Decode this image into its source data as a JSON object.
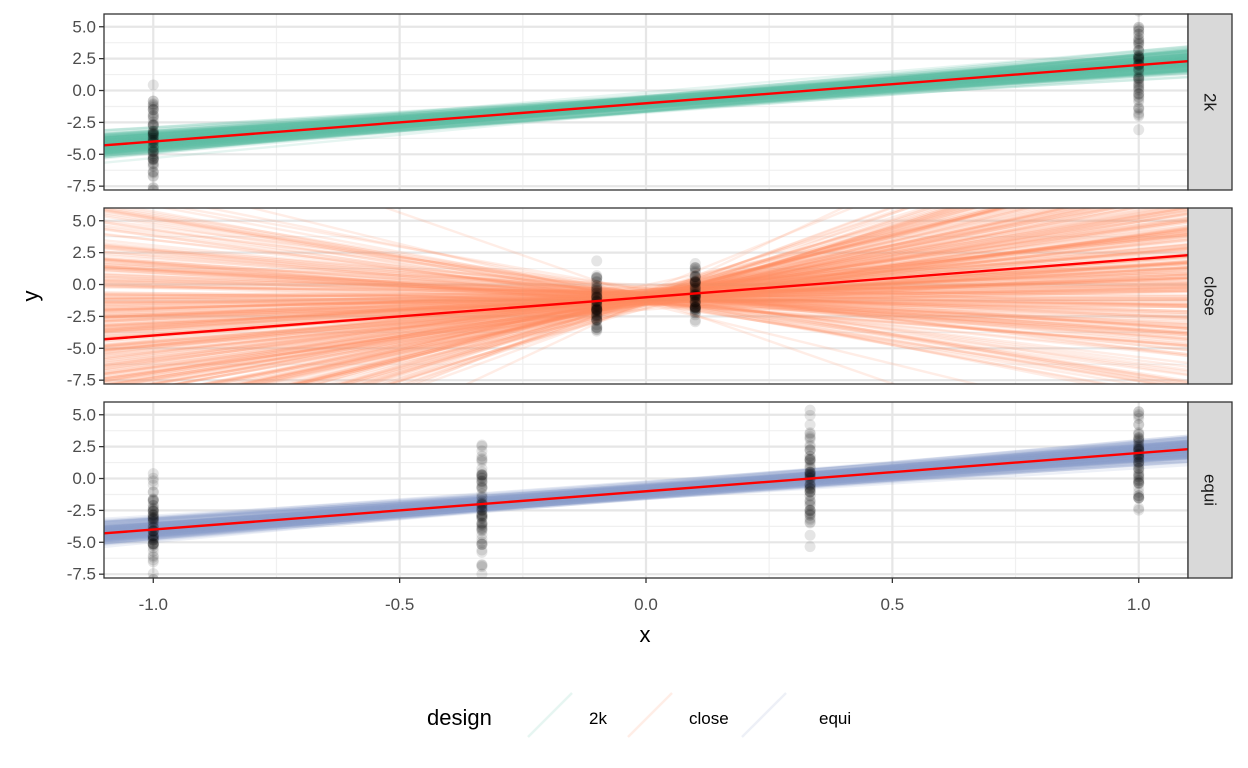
{
  "chart_data": {
    "type": "line",
    "subtype": "faceted-simulation",
    "xlabel": "x",
    "ylabel": "y",
    "xlim": [
      -1.1,
      1.1
    ],
    "ylim": [
      -7.8,
      6.0
    ],
    "x_ticks": [
      -1.0,
      -0.5,
      0.0,
      0.5,
      1.0
    ],
    "x_tick_labels": [
      "-1.0",
      "-0.5",
      "0.0",
      "0.5",
      "1.0"
    ],
    "y_ticks": [
      -7.5,
      -5.0,
      -2.5,
      0.0,
      2.5,
      5.0
    ],
    "y_tick_labels": [
      "-7.5",
      "-5.0",
      "-2.5",
      "0.0",
      "2.5",
      "5.0"
    ],
    "true_line": {
      "intercept": -1.0,
      "slope": 3.0,
      "color": "#ff0000"
    },
    "point_color": "#000000",
    "facets": [
      {
        "label": "2k",
        "color": "#66c2a5",
        "design_x": [
          -1.0,
          1.0
        ],
        "fit_intercept_range": [
          -1.8,
          -0.2
        ],
        "fit_slope_range": [
          2.0,
          4.0
        ],
        "point_y_range": [
          -7.0,
          6.0
        ]
      },
      {
        "label": "close",
        "color": "#fc8d62",
        "design_x": [
          -0.1,
          0.1
        ],
        "fit_intercept_range": [
          -2.0,
          0.0
        ],
        "fit_slope_range": [
          -12.0,
          18.0
        ],
        "point_y_range": [
          -4.0,
          2.3
        ]
      },
      {
        "label": "equi",
        "color": "#8da0cb",
        "design_x": [
          -1.0,
          -0.333,
          0.333,
          1.0
        ],
        "fit_intercept_range": [
          -1.8,
          -0.2
        ],
        "fit_slope_range": [
          2.2,
          3.8
        ],
        "point_y_range": [
          -6.8,
          5.4
        ]
      }
    ],
    "legend": {
      "title": "design",
      "position": "bottom",
      "entries": [
        "2k",
        "close",
        "equi"
      ]
    }
  }
}
